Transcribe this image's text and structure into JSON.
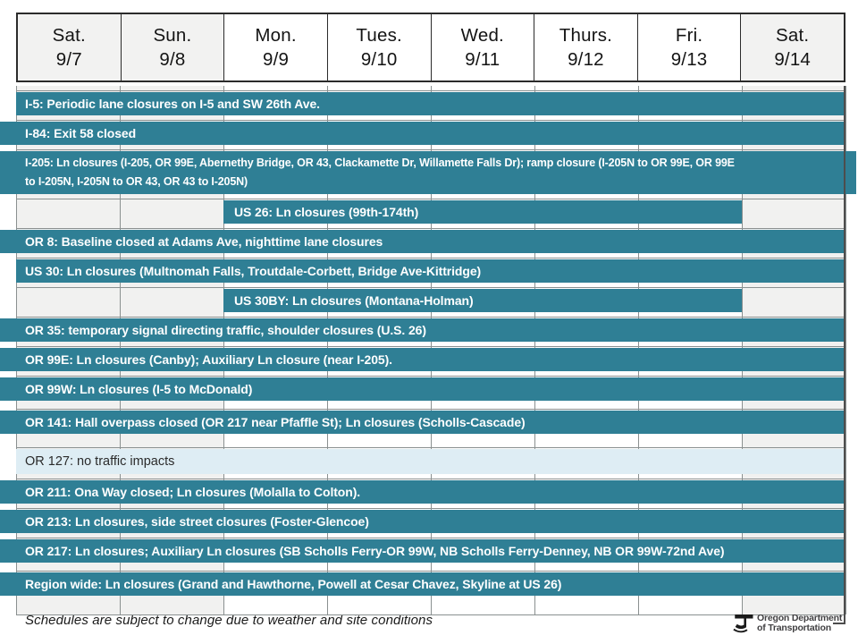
{
  "header": {
    "days": [
      {
        "day": "Sat.",
        "date": "9/7",
        "weekend": true
      },
      {
        "day": "Sun.",
        "date": "9/8",
        "weekend": true
      },
      {
        "day": "Mon.",
        "date": "9/9",
        "weekend": false
      },
      {
        "day": "Tues.",
        "date": "9/10",
        "weekend": false
      },
      {
        "day": "Wed.",
        "date": "9/11",
        "weekend": false
      },
      {
        "day": "Thurs.",
        "date": "9/12",
        "weekend": false
      },
      {
        "day": "Fri.",
        "date": "9/13",
        "weekend": false
      },
      {
        "day": "Sat.",
        "date": "9/14",
        "weekend": true
      }
    ]
  },
  "schedule": {
    "rows": [
      {
        "id": "i-5",
        "style": "teal",
        "span": "all-week",
        "inset": true,
        "lines": [
          "I-5: Periodic lane closures on I-5 and SW 26th Ave."
        ]
      },
      {
        "id": "i-84",
        "style": "teal",
        "span": "all-week",
        "inset": false,
        "lines": [
          "I-84: Exit 58 closed"
        ]
      },
      {
        "id": "i-205",
        "style": "teal",
        "span": "all-week",
        "inset": false,
        "lines": [
          "I-205:  Ln closures (I-205, OR 99E, Abernethy Bridge, OR 43, Clackamette Dr, Willamette Falls Dr); ramp closure (I-205N to OR 99E, OR 99E",
          "to I-205N, I-205N to OR 43, OR 43 to I-205N)"
        ]
      },
      {
        "id": "us-26",
        "style": "teal",
        "span": "mon-fri",
        "inset": false,
        "lines": [
          "US 26: Ln closures (99th-174th)"
        ]
      },
      {
        "id": "or-8",
        "style": "teal",
        "span": "all-week",
        "inset": false,
        "lines": [
          "OR 8:  Baseline closed at Adams Ave, nighttime lane closures"
        ]
      },
      {
        "id": "us-30",
        "style": "teal",
        "span": "all-week",
        "inset": true,
        "lines": [
          "US 30: Ln closures (Multnomah Falls, Troutdale-Corbett, Bridge Ave-Kittridge)"
        ]
      },
      {
        "id": "us-30by",
        "style": "teal",
        "span": "mon-fri",
        "inset": false,
        "lines": [
          "US 30BY:  Ln closures (Montana-Holman)"
        ]
      },
      {
        "id": "or-35",
        "style": "teal",
        "span": "all-week",
        "inset": false,
        "lines": [
          "OR 35:  temporary signal directing traffic, shoulder closures (U.S. 26)"
        ]
      },
      {
        "id": "or-99e",
        "style": "teal",
        "span": "all-week",
        "inset": false,
        "lines": [
          "OR 99E:  Ln closures (Canby); Auxiliary Ln closure (near I-205)."
        ]
      },
      {
        "id": "or-99w",
        "style": "teal",
        "span": "all-week",
        "inset": false,
        "lines": [
          "OR 99W:  Ln closures (I-5 to McDonald)"
        ]
      },
      {
        "id": "or-141",
        "style": "teal",
        "span": "all-week",
        "inset": false,
        "lines": [
          "OR 141:  Hall overpass closed (OR 217 near Pfaffle St); Ln closures (Scholls-Cascade)"
        ]
      },
      {
        "id": "or-127",
        "style": "pale",
        "span": "all-week",
        "inset": true,
        "lines": [
          "OR 127: no traffic impacts"
        ]
      },
      {
        "id": "or-211",
        "style": "teal",
        "span": "all-week",
        "inset": false,
        "lines": [
          "OR 211:  Ona Way closed; Ln closures (Molalla to Colton)."
        ]
      },
      {
        "id": "or-213",
        "style": "teal",
        "span": "all-week",
        "inset": false,
        "lines": [
          "OR 213:  Ln closures, side street closures (Foster-Glencoe)"
        ]
      },
      {
        "id": "or-217",
        "style": "teal",
        "span": "all-week",
        "inset": false,
        "lines": [
          "OR 217:  Ln closures; Auxiliary Ln closures (SB Scholls Ferry-OR 99W, NB Scholls Ferry-Denney, NB OR 99W-72nd Ave)"
        ]
      },
      {
        "id": "region-wide",
        "style": "teal",
        "span": "all-week",
        "inset": false,
        "lines": [
          "Region wide: Ln closures (Grand and Hawthorne, Powell at Cesar Chavez, Skyline at US 26)"
        ]
      }
    ]
  },
  "footer": {
    "note": "Schedules are subject to change due to weather and site conditions"
  },
  "logo": {
    "line1": "Oregon Department",
    "line2": "of Transportation"
  },
  "colors": {
    "bar_teal": "#2F7F95",
    "bar_pale": "#DEEDF4",
    "weekend_shade": "#F1F1F0",
    "grid_line": "#8A9090",
    "header_border": "#2B2B2B"
  }
}
